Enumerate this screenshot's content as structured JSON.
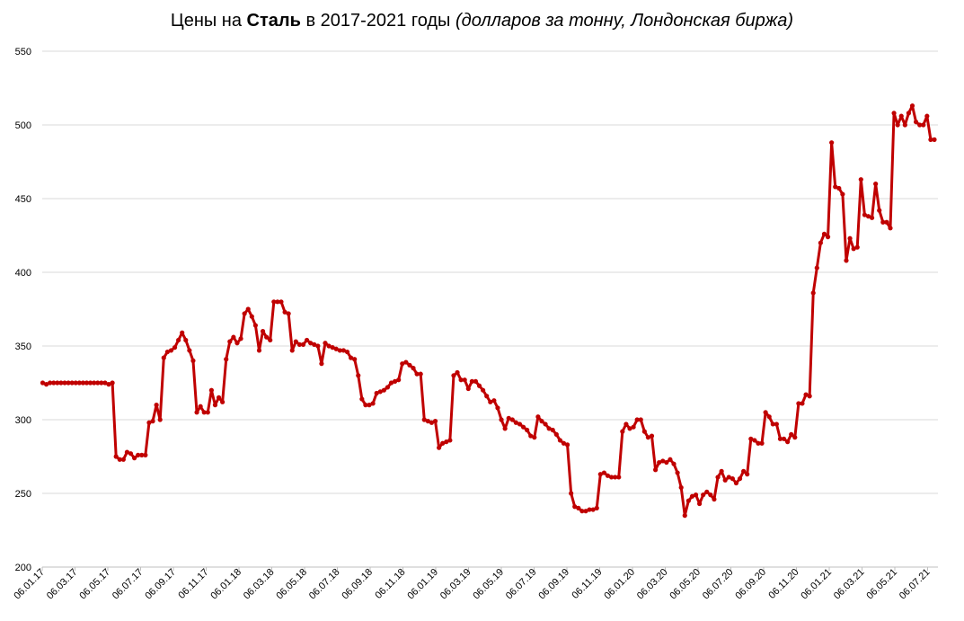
{
  "title": {
    "prefix": "Цены на ",
    "bold": "Сталь",
    "middle": " в 2017-2021 годы ",
    "italic": "(долларов за тонну, Лондонская биржа)"
  },
  "chart_data": {
    "type": "line",
    "title": "Цены на Сталь в 2017-2021 годы (долларов за тонну, Лондонская биржа)",
    "xlabel": "",
    "ylabel": "",
    "ylim": [
      200,
      550
    ],
    "yticks": [
      200,
      250,
      300,
      350,
      400,
      450,
      500,
      550
    ],
    "xticks": [
      "06.01.17",
      "06.03.17",
      "06.05.17",
      "06.07.17",
      "06.09.17",
      "06.11.17",
      "06.01.18",
      "06.03.18",
      "06.05.18",
      "06.07.18",
      "06.09.18",
      "06.11.18",
      "06.01.19",
      "06.03.19",
      "06.05.19",
      "06.07.19",
      "06.09.19",
      "06.11.19",
      "06.01.20",
      "06.03.20",
      "06.05.20",
      "06.07.20",
      "06.09.20",
      "06.11.20",
      "06.01.21",
      "06.03.21",
      "06.05.21",
      "06.07.21"
    ],
    "grid": true,
    "legend": "none",
    "color": "#c00000",
    "series": [
      {
        "values": [
          325,
          324,
          325,
          325,
          325,
          325,
          325,
          325,
          325,
          325,
          325,
          325,
          325,
          325,
          325,
          325,
          325,
          325,
          324,
          325,
          275,
          273,
          273,
          278,
          277,
          274,
          276,
          276,
          276,
          298,
          299,
          310,
          300,
          342,
          346,
          347,
          349,
          354,
          359,
          354,
          347,
          340,
          305,
          309,
          305,
          305,
          320,
          310,
          315,
          312,
          341,
          353,
          356,
          352,
          355,
          372,
          375,
          370,
          364,
          347,
          360,
          356,
          354,
          380,
          380,
          380,
          373,
          372,
          347,
          353,
          351,
          351,
          354,
          352,
          351,
          350,
          338,
          352,
          350,
          349,
          348,
          347,
          347,
          346,
          342,
          341,
          330,
          314,
          310,
          310,
          311,
          318,
          319,
          320,
          322,
          325,
          326,
          327,
          338,
          339,
          337,
          335,
          331,
          331,
          300,
          299,
          298,
          299,
          281,
          284,
          285,
          286,
          330,
          332,
          327,
          327,
          321,
          326,
          326,
          323,
          320,
          316,
          312,
          313,
          308,
          300,
          294,
          301,
          300,
          298,
          297,
          295,
          293,
          289,
          288,
          302,
          299,
          297,
          294,
          293,
          290,
          286,
          284,
          283,
          250,
          241,
          240,
          238,
          238,
          239,
          239,
          240,
          263,
          264,
          262,
          261,
          261,
          261,
          292,
          297,
          294,
          295,
          300,
          300,
          292,
          288,
          289,
          266,
          271,
          272,
          271,
          273,
          270,
          264,
          254,
          235,
          245,
          248,
          249,
          243,
          249,
          251,
          249,
          246,
          261,
          265,
          259,
          261,
          260,
          257,
          260,
          265,
          263,
          287,
          286,
          284,
          284,
          305,
          302,
          297,
          297,
          287,
          287,
          285,
          290,
          288,
          311,
          311,
          317,
          316,
          386,
          403,
          420,
          426,
          424,
          488,
          458,
          457,
          453,
          408,
          423,
          416,
          417,
          463,
          439,
          438,
          437,
          460,
          442,
          434,
          434,
          430,
          508,
          500,
          506,
          500,
          508,
          513,
          502,
          500,
          500,
          506,
          490,
          490
        ]
      }
    ]
  }
}
